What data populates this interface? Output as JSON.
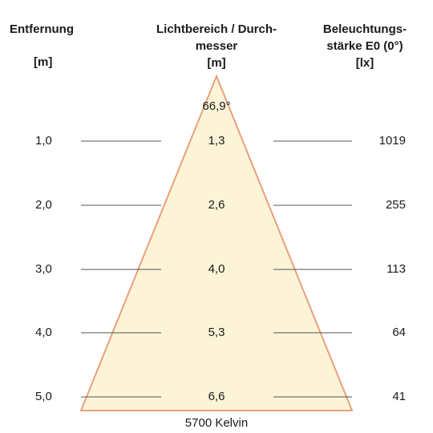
{
  "headers": {
    "distance": {
      "line1": "Entfernung",
      "line2": "[m]"
    },
    "diameter": {
      "line1": "Lichtbereich / Durch-",
      "line2": "messer",
      "line3": "[m]"
    },
    "illuminance": {
      "line1": "Beleuchtungs-",
      "line2": "stärke E0 (0°)",
      "line3": "[lx]"
    }
  },
  "beam_angle": "66,9°",
  "color_temperature": "5700 Kelvin",
  "rows": [
    {
      "distance": "1,0",
      "diameter": "1,3",
      "lux": "1019"
    },
    {
      "distance": "2,0",
      "diameter": "2,6",
      "lux": "255"
    },
    {
      "distance": "3,0",
      "diameter": "4,0",
      "lux": "113"
    },
    {
      "distance": "4,0",
      "diameter": "5,3",
      "lux": "64"
    },
    {
      "distance": "5,0",
      "diameter": "6,6",
      "lux": "41"
    }
  ],
  "colors": {
    "cone_fill": "#fdf4d8",
    "cone_edge": "#e8a07a",
    "guide_line": "#555555"
  }
}
